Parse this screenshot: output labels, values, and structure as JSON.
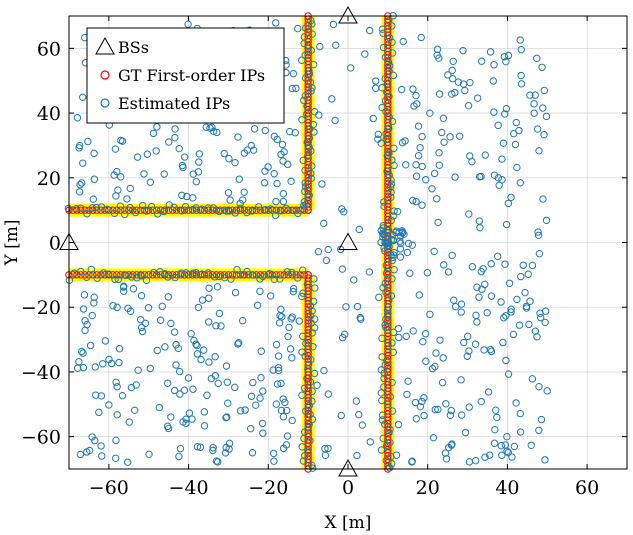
{
  "chart_data": {
    "type": "scatter",
    "xlabel": "X [m]",
    "ylabel": "Y [m]",
    "xlim": [
      -70,
      70
    ],
    "ylim": [
      -70,
      70
    ],
    "xticks": [
      -60,
      -40,
      -20,
      0,
      20,
      40,
      60
    ],
    "yticks": [
      -60,
      -40,
      -20,
      0,
      20,
      40,
      60
    ],
    "grid": true,
    "legend_position": "top-left",
    "legend": [
      {
        "label": "BSs",
        "marker": "triangle",
        "color": "#000000"
      },
      {
        "label": "GT First-order IPs",
        "marker": "circle",
        "color": "#ff0000"
      },
      {
        "label": "Estimated IPs",
        "marker": "circle",
        "color": "#1f77b4"
      }
    ],
    "base_stations": [
      {
        "x": 0,
        "y": 70
      },
      {
        "x": -70,
        "y": 0
      },
      {
        "x": 0,
        "y": 0
      },
      {
        "x": 0,
        "y": -70
      }
    ],
    "walls": [
      {
        "x1": -70,
        "y1": 10,
        "x2": -10,
        "y2": 10
      },
      {
        "x1": -10,
        "y1": 10,
        "x2": -10,
        "y2": 70
      },
      {
        "x1": -70,
        "y1": -10,
        "x2": -10,
        "y2": -10
      },
      {
        "x1": -10,
        "y1": -10,
        "x2": -10,
        "y2": -70
      },
      {
        "x1": 10,
        "y1": -70,
        "x2": 10,
        "y2": 70
      }
    ],
    "gt_ips": {
      "lines": [
        {
          "orientation": "horizontal",
          "y": 10,
          "from": -70,
          "to": -10
        },
        {
          "orientation": "horizontal",
          "y": -10,
          "from": -70,
          "to": -10
        },
        {
          "orientation": "vertical",
          "x": -10,
          "from": 10,
          "to": 70
        },
        {
          "orientation": "vertical",
          "x": -10,
          "from": -70,
          "to": -10
        },
        {
          "orientation": "vertical",
          "x": 10,
          "from": -70,
          "to": 70
        }
      ],
      "spacing": 1
    },
    "estimated_ips": {
      "along_walls": true,
      "scattered_regions": [
        {
          "x": [
            -68,
            -12
          ],
          "y": [
            12,
            68
          ],
          "count": 170
        },
        {
          "x": [
            -68,
            -12
          ],
          "y": [
            -68,
            -12
          ],
          "count": 180
        },
        {
          "x": [
            -8,
            8
          ],
          "y": [
            -68,
            68
          ],
          "count": 45
        },
        {
          "x": [
            12,
            50
          ],
          "y": [
            -68,
            64
          ],
          "count": 240
        }
      ]
    },
    "colors": {
      "wall_highlight": "#ffff00",
      "gt": "#ff0000",
      "estimated": "#1f77b4",
      "grid": "#d9d9d9"
    }
  }
}
